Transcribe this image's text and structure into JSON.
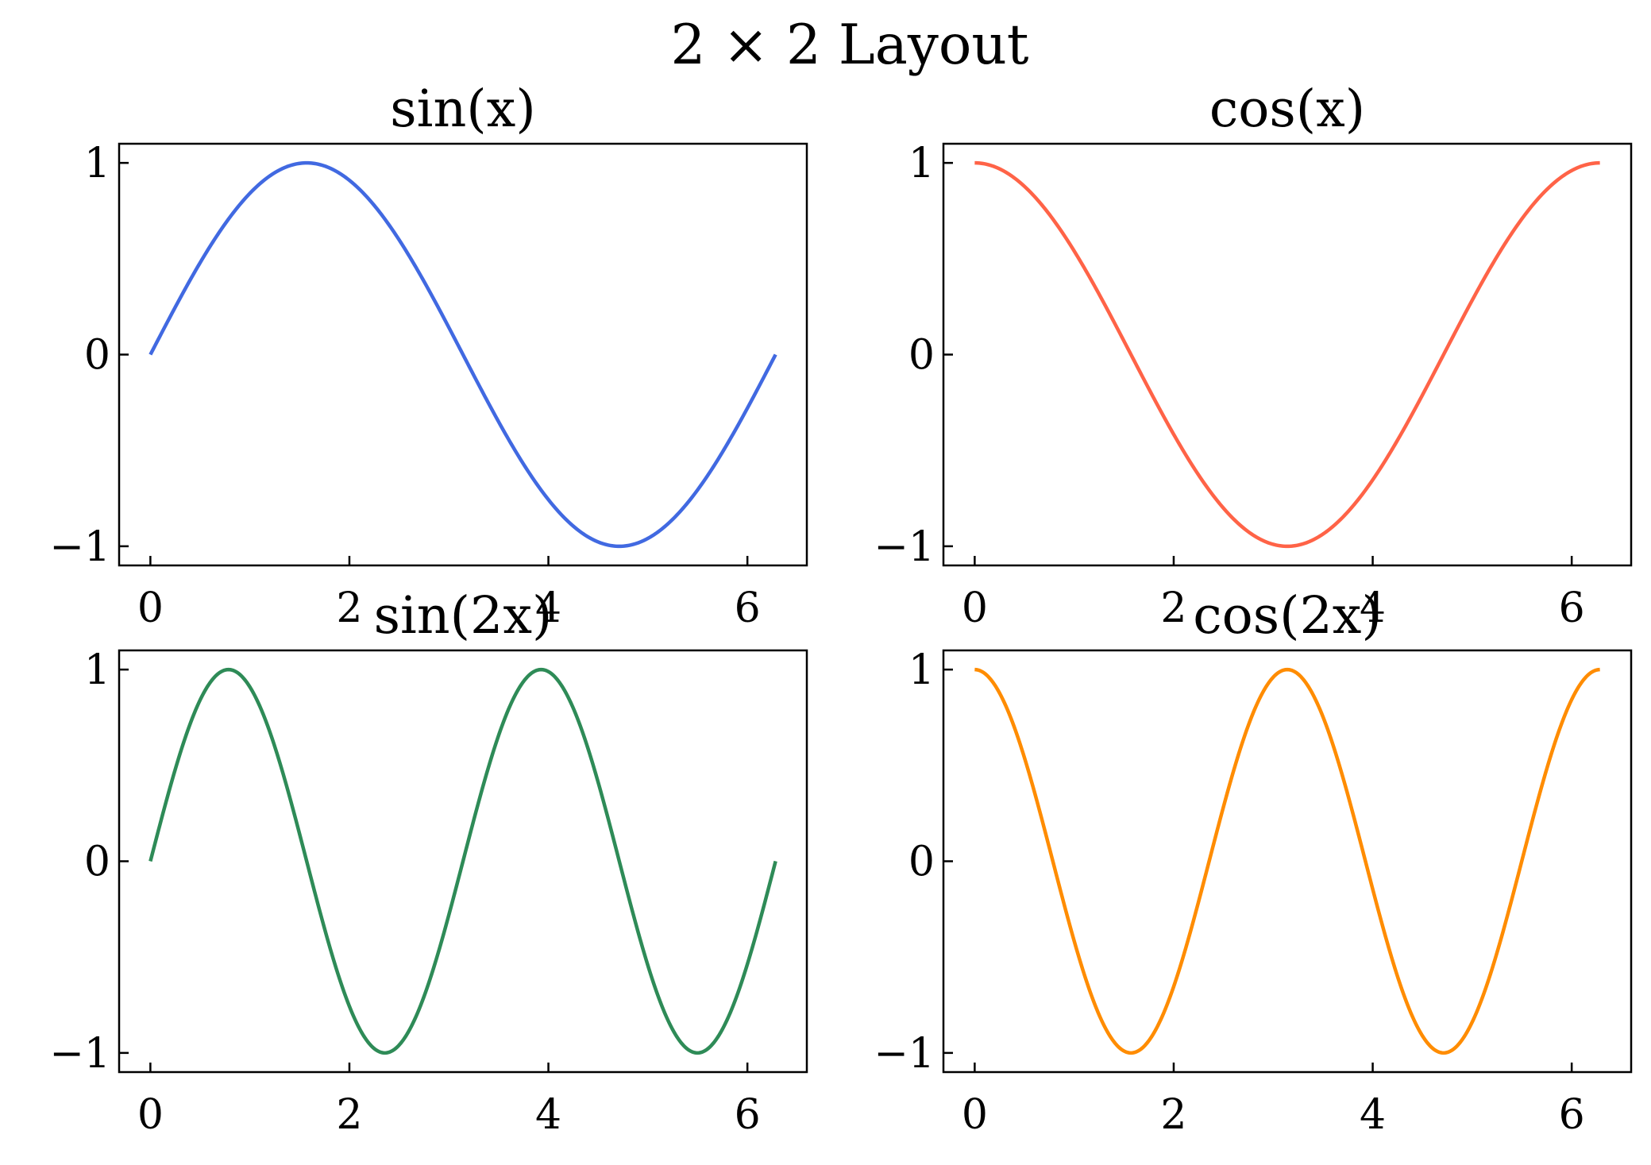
{
  "figure": {
    "suptitle": "2 × 2 Layout"
  },
  "chart_data": [
    {
      "type": "line",
      "title": "sin(x)",
      "xlabel": "",
      "ylabel": "",
      "xlim": [
        -0.3142,
        6.5973
      ],
      "ylim": [
        -1.1,
        1.1
      ],
      "xticks": [
        0,
        2,
        4,
        6
      ],
      "xtick_labels": [
        "0",
        "2",
        "4",
        "6"
      ],
      "yticks": [
        -1,
        0,
        1
      ],
      "ytick_labels": [
        "−1",
        "0",
        "1"
      ],
      "grid": false,
      "series": [
        {
          "function": "sin(x)",
          "color": "#4169E1",
          "x_start": 0,
          "x_end": 6.2832,
          "x": [
            0,
            0.7854,
            1.5708,
            2.3562,
            3.1416,
            3.927,
            4.7124,
            5.4978,
            6.2832
          ],
          "y": [
            0,
            0.7071,
            1,
            0.7071,
            0,
            -0.7071,
            -1,
            -0.7071,
            0
          ]
        }
      ]
    },
    {
      "type": "line",
      "title": "cos(x)",
      "xlabel": "",
      "ylabel": "",
      "xlim": [
        -0.3142,
        6.5973
      ],
      "ylim": [
        -1.1,
        1.1
      ],
      "xticks": [
        0,
        2,
        4,
        6
      ],
      "xtick_labels": [
        "0",
        "2",
        "4",
        "6"
      ],
      "yticks": [
        -1,
        0,
        1
      ],
      "ytick_labels": [
        "−1",
        "0",
        "1"
      ],
      "grid": false,
      "series": [
        {
          "function": "cos(x)",
          "color": "#FF6347",
          "x_start": 0,
          "x_end": 6.2832,
          "x": [
            0,
            0.7854,
            1.5708,
            2.3562,
            3.1416,
            3.927,
            4.7124,
            5.4978,
            6.2832
          ],
          "y": [
            1,
            0.7071,
            0,
            -0.7071,
            -1,
            -0.7071,
            0,
            0.7071,
            1
          ]
        }
      ]
    },
    {
      "type": "line",
      "title": "sin(2x)",
      "xlabel": "",
      "ylabel": "",
      "xlim": [
        -0.3142,
        6.5973
      ],
      "ylim": [
        -1.1,
        1.1
      ],
      "xticks": [
        0,
        2,
        4,
        6
      ],
      "xtick_labels": [
        "0",
        "2",
        "4",
        "6"
      ],
      "yticks": [
        -1,
        0,
        1
      ],
      "ytick_labels": [
        "−1",
        "0",
        "1"
      ],
      "grid": false,
      "series": [
        {
          "function": "sin(2x)",
          "color": "#2E8B57",
          "x_start": 0,
          "x_end": 6.2832,
          "x": [
            0,
            0.3927,
            0.7854,
            1.1781,
            1.5708,
            1.9635,
            2.3562,
            2.7489,
            3.1416,
            3.5343,
            3.927,
            4.3197,
            4.7124,
            5.1051,
            5.4978,
            5.8905,
            6.2832
          ],
          "y": [
            0,
            0.7071,
            1,
            0.7071,
            0,
            -0.7071,
            -1,
            -0.7071,
            0,
            0.7071,
            1,
            0.7071,
            0,
            -0.7071,
            -1,
            -0.7071,
            0
          ]
        }
      ]
    },
    {
      "type": "line",
      "title": "cos(2x)",
      "xlabel": "",
      "ylabel": "",
      "xlim": [
        -0.3142,
        6.5973
      ],
      "ylim": [
        -1.1,
        1.1
      ],
      "xticks": [
        0,
        2,
        4,
        6
      ],
      "xtick_labels": [
        "0",
        "2",
        "4",
        "6"
      ],
      "yticks": [
        -1,
        0,
        1
      ],
      "ytick_labels": [
        "−1",
        "0",
        "1"
      ],
      "grid": false,
      "series": [
        {
          "function": "cos(2x)",
          "color": "#FF8C00",
          "x_start": 0,
          "x_end": 6.2832,
          "x": [
            0,
            0.3927,
            0.7854,
            1.1781,
            1.5708,
            1.9635,
            2.3562,
            2.7489,
            3.1416,
            3.5343,
            3.927,
            4.3197,
            4.7124,
            5.1051,
            5.4978,
            5.8905,
            6.2832
          ],
          "y": [
            1,
            0.7071,
            0,
            -0.7071,
            -1,
            -0.7071,
            0,
            0.7071,
            1,
            0.7071,
            0,
            -0.7071,
            -1,
            -0.7071,
            0,
            0.7071,
            1
          ]
        }
      ]
    }
  ]
}
